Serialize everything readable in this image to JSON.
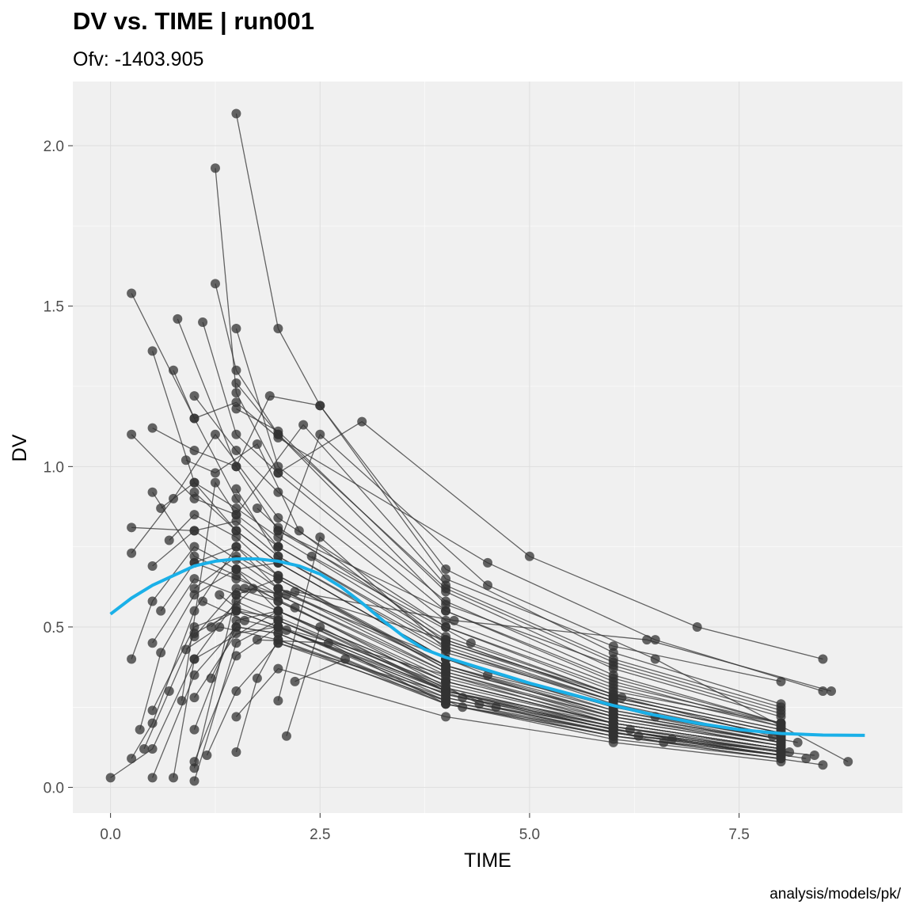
{
  "chart_data": {
    "type": "line",
    "title": "DV vs. TIME | run001",
    "subtitle": "Ofv: -1403.905",
    "caption": "analysis/models/pk/",
    "xlabel": "TIME",
    "ylabel": "DV",
    "xlim": [
      -0.45,
      9.45
    ],
    "ylim": [
      -0.08,
      2.2
    ],
    "x_ticks": [
      0.0,
      2.5,
      5.0,
      7.5
    ],
    "x_tick_labels": [
      "0.0",
      "2.5",
      "5.0",
      "7.5"
    ],
    "y_ticks": [
      0.0,
      0.5,
      1.0,
      1.5,
      2.0
    ],
    "y_tick_labels": [
      "0.0",
      "0.5",
      "1.0",
      "1.5",
      "2.0"
    ],
    "grid": true,
    "panel_background": "#f0f0f0",
    "colors": {
      "points": "#333333",
      "lines": "#333333",
      "smooth": "#1ab0e8"
    },
    "individuals": [
      {
        "x": [
          0.0,
          0.5,
          1.0,
          2.0,
          4.0,
          6.0,
          8.0
        ],
        "y": [
          0.03,
          0.12,
          0.4,
          0.55,
          0.3,
          0.2,
          0.12
        ]
      },
      {
        "x": [
          0.25,
          0.5,
          1.0,
          1.5,
          2.0,
          4.0,
          6.0,
          8.0
        ],
        "y": [
          0.09,
          0.2,
          0.55,
          0.75,
          0.62,
          0.38,
          0.22,
          0.13
        ]
      },
      {
        "x": [
          0.25,
          1.0,
          1.5,
          2.0,
          4.0,
          6.0,
          8.0
        ],
        "y": [
          1.54,
          1.15,
          0.9,
          0.75,
          0.45,
          0.28,
          0.17
        ]
      },
      {
        "x": [
          0.5,
          1.0,
          1.5,
          2.0,
          4.0,
          6.0,
          8.0
        ],
        "y": [
          1.36,
          0.95,
          0.8,
          0.7,
          0.4,
          0.25,
          0.15
        ]
      },
      {
        "x": [
          0.8,
          1.5,
          2.0,
          4.0,
          6.0,
          8.0
        ],
        "y": [
          1.46,
          1.0,
          0.8,
          0.5,
          0.3,
          0.2
        ]
      },
      {
        "x": [
          1.25,
          1.5,
          2.0,
          4.0,
          6.0,
          8.0
        ],
        "y": [
          1.93,
          1.23,
          0.98,
          0.55,
          0.34,
          0.2
        ]
      },
      {
        "x": [
          1.5,
          2.0,
          2.5,
          4.0,
          6.0,
          8.0
        ],
        "y": [
          2.1,
          1.43,
          1.19,
          0.68,
          0.42,
          0.26
        ]
      },
      {
        "x": [
          1.25,
          1.5,
          2.0,
          4.0,
          6.0,
          8.0
        ],
        "y": [
          1.57,
          1.3,
          1.1,
          0.57,
          0.38,
          0.23
        ]
      },
      {
        "x": [
          1.1,
          1.5,
          2.0,
          3.0,
          5.0,
          7.0,
          8.5
        ],
        "y": [
          1.45,
          1.1,
          0.98,
          1.14,
          0.72,
          0.5,
          0.4
        ]
      },
      {
        "x": [
          0.75,
          1.0,
          1.5,
          2.0,
          4.5,
          6.5,
          8.5
        ],
        "y": [
          1.3,
          1.15,
          1.2,
          1.09,
          0.7,
          0.46,
          0.3
        ]
      },
      {
        "x": [
          0.5,
          1.0,
          1.5,
          1.9,
          2.5,
          4.0,
          6.0,
          8.0
        ],
        "y": [
          1.12,
          1.05,
          1.0,
          1.22,
          1.19,
          0.65,
          0.44,
          0.33
        ]
      },
      {
        "x": [
          0.25,
          1.0,
          1.5,
          2.3,
          4.0,
          6.0,
          8.0
        ],
        "y": [
          1.1,
          0.9,
          0.85,
          1.13,
          0.63,
          0.4,
          0.25
        ]
      },
      {
        "x": [
          0.25,
          1.0,
          1.5,
          2.0,
          4.0,
          6.0,
          8.0
        ],
        "y": [
          0.81,
          0.8,
          0.83,
          0.72,
          0.42,
          0.27,
          0.16
        ]
      },
      {
        "x": [
          0.25,
          0.75,
          1.25,
          2.0,
          4.0,
          6.0,
          8.0
        ],
        "y": [
          0.73,
          0.9,
          1.1,
          0.84,
          0.5,
          0.31,
          0.19
        ]
      },
      {
        "x": [
          0.25,
          0.5,
          1.0,
          1.5,
          2.0,
          4.0,
          6.0,
          8.0
        ],
        "y": [
          0.4,
          0.58,
          0.75,
          0.68,
          0.6,
          0.35,
          0.22,
          0.14
        ]
      },
      {
        "x": [
          0.5,
          1.0,
          1.5,
          2.0,
          4.0,
          6.0,
          8.0
        ],
        "y": [
          0.92,
          0.72,
          0.66,
          0.58,
          0.33,
          0.2,
          0.12
        ]
      },
      {
        "x": [
          0.5,
          1.0,
          1.5,
          2.0,
          4.0,
          6.0,
          8.0
        ],
        "y": [
          0.69,
          0.8,
          0.71,
          0.62,
          0.36,
          0.22,
          0.13
        ]
      },
      {
        "x": [
          0.5,
          1.0,
          1.5,
          2.0,
          4.0,
          6.0,
          8.0
        ],
        "y": [
          0.45,
          0.65,
          0.6,
          0.55,
          0.31,
          0.19,
          0.11
        ]
      },
      {
        "x": [
          0.5,
          1.0,
          1.5,
          2.0,
          4.0,
          6.0,
          8.0
        ],
        "y": [
          0.24,
          0.5,
          0.55,
          0.5,
          0.28,
          0.17,
          0.1
        ]
      },
      {
        "x": [
          0.5,
          1.0,
          1.5,
          2.0,
          4.0,
          6.0,
          8.0
        ],
        "y": [
          0.03,
          0.35,
          0.5,
          0.48,
          0.27,
          0.16,
          0.09
        ]
      },
      {
        "x": [
          0.75,
          1.0,
          1.5,
          2.0,
          4.0,
          6.0,
          8.0
        ],
        "y": [
          0.03,
          0.4,
          0.58,
          0.52,
          0.3,
          0.18,
          0.1
        ]
      },
      {
        "x": [
          1.0,
          1.5,
          2.0,
          4.0,
          6.0,
          8.0
        ],
        "y": [
          0.02,
          0.45,
          0.52,
          0.32,
          0.2,
          0.12
        ]
      },
      {
        "x": [
          1.0,
          1.5,
          2.0,
          4.0,
          6.0,
          8.0
        ],
        "y": [
          0.06,
          0.6,
          0.65,
          0.38,
          0.24,
          0.14
        ]
      },
      {
        "x": [
          1.0,
          1.5,
          2.0,
          4.0,
          6.0,
          8.0
        ],
        "y": [
          0.08,
          0.41,
          0.5,
          0.3,
          0.18,
          0.11
        ]
      },
      {
        "x": [
          1.0,
          1.5,
          2.0,
          4.0,
          6.0,
          8.0
        ],
        "y": [
          0.18,
          0.52,
          0.55,
          0.33,
          0.2,
          0.12
        ]
      },
      {
        "x": [
          1.15,
          1.5,
          2.0,
          4.0,
          6.0,
          8.0
        ],
        "y": [
          0.1,
          0.3,
          0.45,
          0.27,
          0.17,
          0.1
        ]
      },
      {
        "x": [
          1.5,
          1.75,
          2.0,
          4.0,
          6.0,
          8.0
        ],
        "y": [
          0.11,
          0.34,
          0.46,
          0.28,
          0.17,
          0.1
        ]
      },
      {
        "x": [
          1.5,
          2.0,
          4.0,
          6.0,
          8.0
        ],
        "y": [
          0.22,
          0.37,
          0.22,
          0.14,
          0.08
        ]
      },
      {
        "x": [
          1.5,
          2.0,
          4.0,
          6.0,
          8.0
        ],
        "y": [
          1.43,
          1.0,
          0.58,
          0.35,
          0.2
        ]
      },
      {
        "x": [
          2.0,
          2.5,
          4.0,
          6.0,
          8.0
        ],
        "y": [
          0.27,
          0.78,
          0.43,
          0.27,
          0.16
        ]
      },
      {
        "x": [
          2.1,
          2.5,
          4.0,
          6.0,
          8.0
        ],
        "y": [
          0.16,
          0.5,
          0.3,
          0.19,
          0.12
        ]
      },
      {
        "x": [
          0.35,
          0.6,
          1.0,
          1.5,
          2.0,
          4.0,
          6.0,
          8.0
        ],
        "y": [
          0.18,
          0.42,
          0.6,
          0.68,
          0.7,
          0.4,
          0.24,
          0.15
        ]
      },
      {
        "x": [
          0.4,
          0.7,
          1.0,
          1.5,
          2.0,
          4.0,
          6.0,
          8.0
        ],
        "y": [
          0.12,
          0.3,
          0.48,
          0.55,
          0.53,
          0.31,
          0.19,
          0.11
        ]
      },
      {
        "x": [
          0.6,
          1.0,
          1.5,
          2.0,
          4.0,
          6.0,
          8.0
        ],
        "y": [
          0.55,
          0.7,
          0.75,
          0.66,
          0.38,
          0.23,
          0.14
        ]
      },
      {
        "x": [
          0.7,
          1.0,
          1.5,
          2.0,
          4.0,
          6.0,
          8.0
        ],
        "y": [
          0.77,
          0.85,
          0.78,
          0.66,
          0.37,
          0.23,
          0.14
        ]
      },
      {
        "x": [
          0.85,
          1.25,
          1.5,
          2.0,
          4.0,
          6.0,
          8.0
        ],
        "y": [
          0.27,
          0.95,
          0.85,
          0.75,
          0.44,
          0.27,
          0.16
        ]
      },
      {
        "x": [
          0.9,
          1.25,
          1.75,
          2.25,
          4.0,
          6.0,
          8.0
        ],
        "y": [
          1.02,
          0.98,
          1.07,
          0.8,
          0.45,
          0.29,
          0.18
        ]
      },
      {
        "x": [
          1.0,
          1.5,
          2.0,
          4.0,
          6.0,
          8.0
        ],
        "y": [
          1.22,
          1.05,
          0.92,
          0.52,
          0.32,
          0.2
        ]
      },
      {
        "x": [
          0.6,
          1.0,
          1.5,
          2.0,
          4.0,
          6.0,
          8.0
        ],
        "y": [
          0.87,
          0.95,
          0.87,
          0.78,
          0.46,
          0.28,
          0.17
        ]
      },
      {
        "x": [
          1.2,
          1.5,
          2.0,
          4.0,
          6.0,
          8.0
        ],
        "y": [
          0.34,
          0.5,
          0.48,
          0.26,
          0.15,
          0.09
        ]
      },
      {
        "x": [
          1.3,
          1.5,
          2.0,
          4.0,
          6.0,
          8.0
        ],
        "y": [
          0.6,
          0.56,
          0.52,
          0.3,
          0.18,
          0.11
        ]
      },
      {
        "x": [
          1.75,
          2.0,
          4.0,
          6.0,
          8.0
        ],
        "y": [
          0.87,
          0.81,
          0.47,
          0.29,
          0.18
        ]
      },
      {
        "x": [
          1.6,
          2.1,
          4.5,
          6.5,
          8.2
        ],
        "y": [
          0.62,
          0.6,
          0.35,
          0.22,
          0.14
        ]
      },
      {
        "x": [
          2.2,
          2.8,
          4.2,
          6.3,
          8.4
        ],
        "y": [
          0.33,
          0.4,
          0.25,
          0.16,
          0.1
        ]
      },
      {
        "x": [
          1.0,
          1.5,
          2.0,
          4.0,
          6.0,
          8.0
        ],
        "y": [
          0.92,
          0.8,
          0.7,
          0.4,
          0.25,
          0.15
        ]
      },
      {
        "x": [
          1.0,
          1.5,
          2.0,
          4.0,
          6.0,
          8.0
        ],
        "y": [
          0.62,
          0.72,
          0.65,
          0.37,
          0.23,
          0.14
        ]
      },
      {
        "x": [
          1.0,
          1.5,
          2.0,
          4.0,
          6.0,
          8.0
        ],
        "y": [
          0.47,
          0.62,
          0.58,
          0.34,
          0.21,
          0.13
        ]
      },
      {
        "x": [
          1.0,
          1.5,
          2.0,
          4.0,
          6.0,
          8.0
        ],
        "y": [
          0.28,
          0.48,
          0.5,
          0.29,
          0.18,
          0.11
        ]
      },
      {
        "x": [
          1.0,
          1.5,
          2.0,
          4.0,
          6.0,
          8.0
        ],
        "y": [
          0.7,
          0.65,
          0.6,
          0.36,
          0.21,
          0.13
        ]
      },
      {
        "x": [
          1.5,
          2.0,
          4.0,
          6.0,
          8.0
        ],
        "y": [
          0.93,
          0.72,
          0.43,
          0.26,
          0.15
        ]
      },
      {
        "x": [
          1.5,
          2.0,
          4.0,
          6.0,
          8.0
        ],
        "y": [
          0.68,
          0.55,
          0.33,
          0.2,
          0.12
        ]
      },
      {
        "x": [
          1.5,
          2.0,
          4.0,
          6.0,
          8.0
        ],
        "y": [
          0.55,
          0.5,
          0.29,
          0.18,
          0.1
        ]
      },
      {
        "x": [
          1.5,
          2.0,
          4.0,
          6.0,
          8.0
        ],
        "y": [
          1.26,
          1.1,
          0.62,
          0.39,
          0.24
        ]
      },
      {
        "x": [
          1.5,
          2.0,
          4.0,
          6.0,
          8.0
        ],
        "y": [
          1.18,
          1.11,
          0.61,
          0.37,
          0.22
        ]
      },
      {
        "x": [
          2.0,
          2.5,
          4.5,
          6.5,
          8.8
        ],
        "y": [
          0.75,
          1.1,
          0.63,
          0.4,
          0.08
        ]
      },
      {
        "x": [
          2.0,
          4.0,
          6.0,
          8.0
        ],
        "y": [
          0.8,
          0.55,
          0.33,
          0.19
        ]
      },
      {
        "x": [
          2.0,
          4.0,
          6.0,
          8.0
        ],
        "y": [
          0.62,
          0.46,
          0.28,
          0.17
        ]
      },
      {
        "x": [
          2.0,
          4.0,
          6.0,
          8.0
        ],
        "y": [
          0.5,
          0.35,
          0.2,
          0.12
        ]
      },
      {
        "x": [
          2.0,
          4.2,
          6.2,
          8.1
        ],
        "y": [
          0.45,
          0.28,
          0.18,
          0.11
        ]
      },
      {
        "x": [
          2.2,
          4.1,
          6.4,
          8.6
        ],
        "y": [
          0.61,
          0.52,
          0.46,
          0.3
        ]
      },
      {
        "x": [
          2.4,
          4.3,
          6.1,
          7.9
        ],
        "y": [
          0.72,
          0.45,
          0.28,
          0.16
        ]
      },
      {
        "x": [
          1.75,
          2.6,
          4.0,
          6.0,
          8.0
        ],
        "y": [
          0.46,
          0.45,
          0.26,
          0.16,
          0.1
        ]
      },
      {
        "x": [
          0.9,
          1.3,
          2.0,
          4.0,
          6.0,
          8.0
        ],
        "y": [
          0.43,
          0.5,
          0.46,
          0.26,
          0.16,
          0.1
        ]
      },
      {
        "x": [
          1.1,
          1.6,
          2.1,
          4.6,
          6.7,
          8.3
        ],
        "y": [
          0.58,
          0.52,
          0.49,
          0.25,
          0.15,
          0.09
        ]
      },
      {
        "x": [
          1.2,
          1.7,
          2.2,
          4.4,
          6.6,
          8.5
        ],
        "y": [
          0.5,
          0.62,
          0.56,
          0.26,
          0.14,
          0.07
        ]
      }
    ],
    "smooth": {
      "x": [
        0.0,
        0.25,
        0.5,
        0.75,
        1.0,
        1.25,
        1.5,
        1.75,
        2.0,
        2.25,
        2.5,
        2.75,
        3.0,
        3.25,
        3.5,
        3.75,
        4.0,
        4.5,
        5.0,
        5.5,
        6.0,
        6.5,
        7.0,
        7.5,
        8.0,
        8.5,
        9.0
      ],
      "y": [
        0.54,
        0.59,
        0.63,
        0.66,
        0.69,
        0.705,
        0.712,
        0.712,
        0.705,
        0.69,
        0.665,
        0.625,
        0.575,
        0.52,
        0.47,
        0.43,
        0.405,
        0.365,
        0.325,
        0.29,
        0.255,
        0.225,
        0.2,
        0.18,
        0.168,
        0.163,
        0.162
      ]
    }
  }
}
